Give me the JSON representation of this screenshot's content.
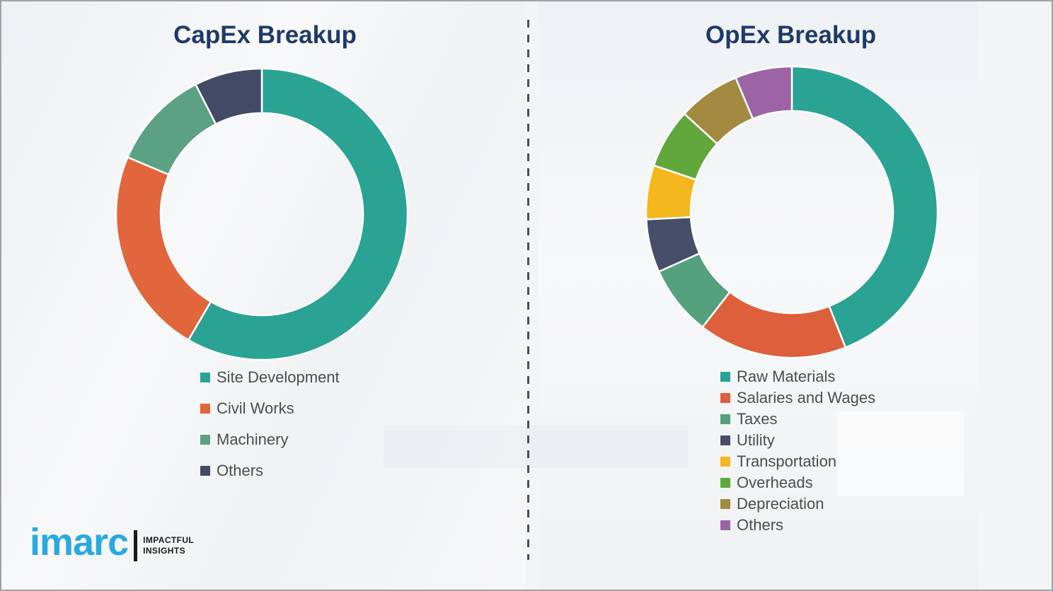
{
  "page": {
    "background_color": "#f3f4f6",
    "border_color": "#9fa1a3",
    "divider_color": "#4f4f4f",
    "title_color": "#1e3a67",
    "legend_text_color": "#4d4d4d"
  },
  "logo": {
    "brand": "imarc",
    "brand_color": "#29a9e1",
    "tagline_line1": "IMPACTFUL",
    "tagline_line2": "INSIGHTS"
  },
  "chart_data": [
    {
      "type": "pie",
      "subtype": "donut",
      "title": "CapEx Breakup",
      "start_angle_deg": 0,
      "direction": "clockwise",
      "legend_position": "below-left",
      "gap_color": "#ffffff",
      "segments": [
        {
          "label": "Site Development",
          "value": 58.4,
          "color": "#2ba394"
        },
        {
          "label": "Civil Works",
          "value": 23.0,
          "color": "#e2663c"
        },
        {
          "label": "Machinery",
          "value": 11.1,
          "color": "#5ca183"
        },
        {
          "label": "Others",
          "value": 7.5,
          "color": "#434a66"
        }
      ]
    },
    {
      "type": "pie",
      "subtype": "donut",
      "title": "OpEx Breakup",
      "start_angle_deg": 0,
      "direction": "clockwise",
      "legend_position": "below-left",
      "gap_color": "#ffffff",
      "segments": [
        {
          "label": "Raw Materials",
          "value": 44.0,
          "color": "#2ba394"
        },
        {
          "label": "Salaries and Wages",
          "value": 16.5,
          "color": "#de5f3b"
        },
        {
          "label": "Taxes",
          "value": 7.8,
          "color": "#55a07d"
        },
        {
          "label": "Utility",
          "value": 5.9,
          "color": "#474e69"
        },
        {
          "label": "Transportation",
          "value": 6.0,
          "color": "#f4b71e"
        },
        {
          "label": "Overheads",
          "value": 6.6,
          "color": "#61a73c"
        },
        {
          "label": "Depreciation",
          "value": 6.9,
          "color": "#a28a41"
        },
        {
          "label": "Others",
          "value": 6.3,
          "color": "#9c63a6"
        }
      ]
    }
  ]
}
